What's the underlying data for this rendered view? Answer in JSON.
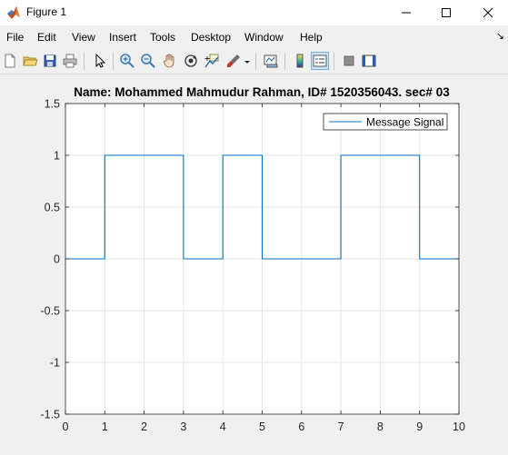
{
  "window": {
    "title": "Figure 1",
    "icon": "matlab-logo-icon"
  },
  "menu": {
    "items": [
      "File",
      "Edit",
      "View",
      "Insert",
      "Tools",
      "Desktop",
      "Window",
      "Help"
    ],
    "more_icon": "dock-arrow-icon"
  },
  "toolbar": {
    "buttons": [
      "new-figure-icon",
      "open-file-icon",
      "save-icon",
      "print-icon",
      "select-pointer-icon",
      "zoom-in-icon",
      "zoom-out-icon",
      "pan-hand-icon",
      "rotate-3d-icon",
      "data-cursor-icon",
      "brush-icon",
      "link-plot-icon",
      "colorbar-icon",
      "legend-icon",
      "hide-plot-tools-icon",
      "show-plot-tools-icon"
    ]
  },
  "colors": {
    "line": "#0072bd",
    "axes_background": "#ffffff",
    "figure_background": "#f0f0f0",
    "grid": "#e6e6e6"
  },
  "chart_data": {
    "type": "line",
    "title": "Name: Mohammed Mahmudur Rahman, ID# 1520356043. sec# 03",
    "xlabel": "",
    "ylabel": "",
    "xlim": [
      0,
      10
    ],
    "ylim": [
      -1.5,
      1.5
    ],
    "xticks": [
      0,
      1,
      2,
      3,
      4,
      5,
      6,
      7,
      8,
      9,
      10
    ],
    "yticks": [
      -1.5,
      -1,
      -0.5,
      0,
      0.5,
      1,
      1.5
    ],
    "ytick_labels": [
      "-1.5",
      "-1",
      "-0.5",
      "0",
      "0.5",
      "1",
      "1.5"
    ],
    "grid": true,
    "legend_position": "top-right",
    "series": [
      {
        "name": "Message Signal",
        "x": [
          0,
          1,
          1,
          3,
          3,
          4,
          4,
          5,
          5,
          7,
          7,
          9,
          9,
          10
        ],
        "y": [
          0,
          0,
          1,
          1,
          0,
          0,
          1,
          1,
          0,
          0,
          1,
          1,
          0,
          0
        ]
      }
    ]
  }
}
